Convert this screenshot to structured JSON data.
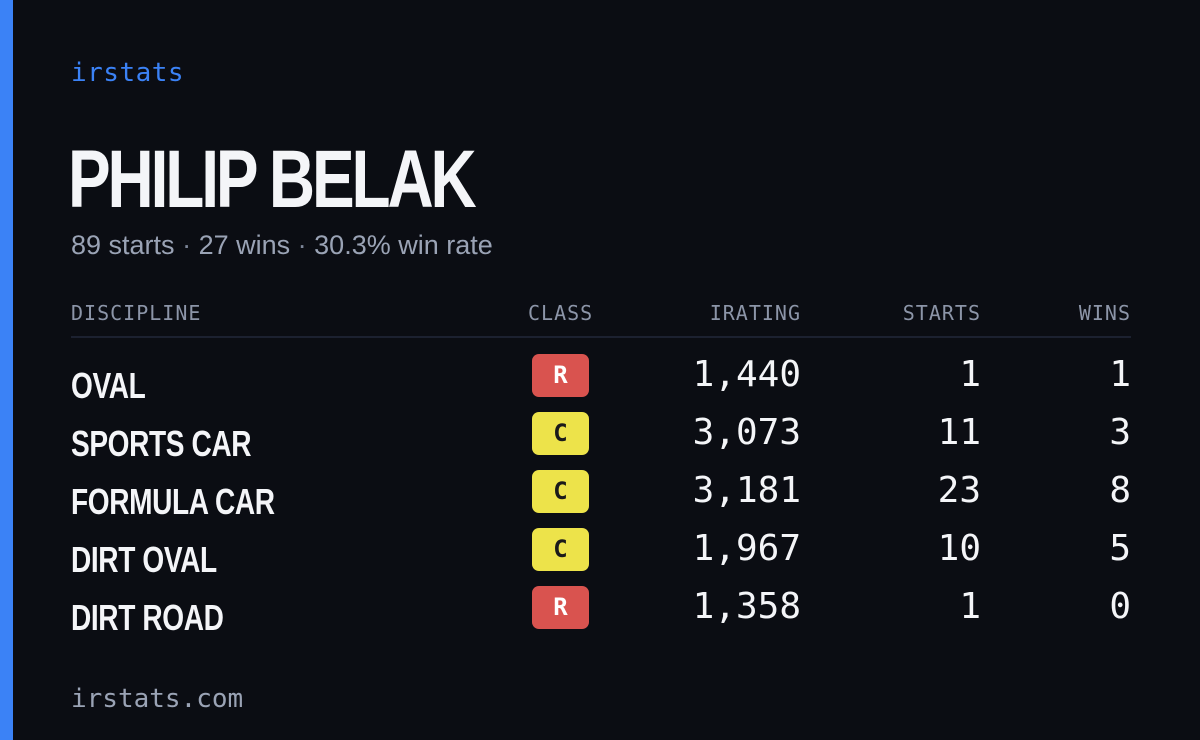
{
  "brand": "irstats",
  "driver": {
    "name": "PHILIP BELAK",
    "starts_text": "89 starts",
    "wins_text": "27 wins",
    "win_rate_text": "30.3% win rate",
    "separator": "·"
  },
  "table": {
    "headers": {
      "discipline": "DISCIPLINE",
      "class": "CLASS",
      "irating": "IRATING",
      "starts": "STARTS",
      "wins": "WINS"
    },
    "rows": [
      {
        "discipline": "OVAL",
        "class": "R",
        "irating": "1,440",
        "starts": "1",
        "wins": "1"
      },
      {
        "discipline": "SPORTS CAR",
        "class": "C",
        "irating": "3,073",
        "starts": "11",
        "wins": "3"
      },
      {
        "discipline": "FORMULA CAR",
        "class": "C",
        "irating": "3,181",
        "starts": "23",
        "wins": "8"
      },
      {
        "discipline": "DIRT OVAL",
        "class": "C",
        "irating": "1,967",
        "starts": "10",
        "wins": "5"
      },
      {
        "discipline": "DIRT ROAD",
        "class": "R",
        "irating": "1,358",
        "starts": "1",
        "wins": "0"
      }
    ]
  },
  "class_colors": {
    "R": {
      "bg": "#d9534f",
      "fg": "#ffffff"
    },
    "C": {
      "bg": "#ede34a",
      "fg": "#1a1a1a"
    }
  },
  "colors": {
    "accent": "#3b82f6",
    "background": "#0b0d13"
  },
  "footer": {
    "url": "irstats.com"
  }
}
